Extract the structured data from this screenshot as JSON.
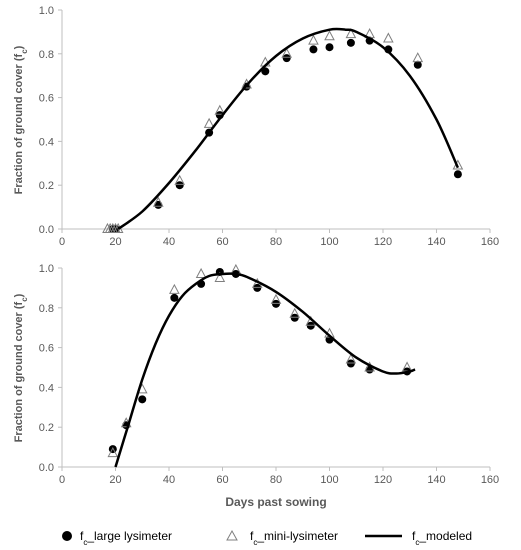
{
  "chart_data": [
    {
      "type": "scatter",
      "ylabel_main": "Fraction of ground cover (f",
      "ylabel_sub": "c",
      "ylabel_end": ")",
      "xlabel": "",
      "xlim": [
        0,
        160
      ],
      "ylim": [
        0,
        1.0
      ],
      "xticks": [
        "0",
        "20",
        "40",
        "60",
        "80",
        "100",
        "120",
        "140",
        "160"
      ],
      "yticks": [
        "0.0",
        "0.2",
        "0.4",
        "0.6",
        "0.8",
        "1.0"
      ],
      "series": [
        {
          "marker": "circle",
          "x": [
            19,
            20,
            36,
            44,
            55,
            59,
            69,
            76,
            84,
            94,
            100,
            108,
            115,
            122,
            133,
            148
          ],
          "y": [
            0.0,
            0.0,
            0.11,
            0.2,
            0.44,
            0.52,
            0.65,
            0.72,
            0.78,
            0.82,
            0.83,
            0.85,
            0.86,
            0.82,
            0.75,
            0.25
          ]
        },
        {
          "marker": "triangle",
          "x": [
            17,
            18,
            19,
            20,
            21,
            36,
            44,
            55,
            59,
            69,
            76,
            84,
            94,
            100,
            108,
            115,
            122,
            133,
            148
          ],
          "y": [
            0.0,
            0.0,
            0.0,
            0.0,
            0.0,
            0.12,
            0.22,
            0.48,
            0.54,
            0.66,
            0.76,
            0.8,
            0.86,
            0.88,
            0.89,
            0.89,
            0.87,
            0.78,
            0.29
          ]
        },
        {
          "marker": "line",
          "x": [
            21,
            30,
            40,
            50,
            60,
            70,
            80,
            90,
            100,
            106,
            110,
            120,
            130,
            140,
            148
          ],
          "y": [
            0.0,
            0.08,
            0.21,
            0.36,
            0.52,
            0.67,
            0.79,
            0.87,
            0.91,
            0.91,
            0.9,
            0.83,
            0.7,
            0.5,
            0.28
          ]
        }
      ]
    },
    {
      "type": "scatter",
      "ylabel_main": "Fraction of ground cover (f",
      "ylabel_sub": "c",
      "ylabel_end": ")",
      "xlabel": "Days past sowing",
      "xlim": [
        0,
        160
      ],
      "ylim": [
        0,
        1.0
      ],
      "xticks": [
        "0",
        "20",
        "40",
        "60",
        "80",
        "100",
        "120",
        "140",
        "160"
      ],
      "yticks": [
        "0.0",
        "0.2",
        "0.4",
        "0.6",
        "0.8",
        "1.0"
      ],
      "series": [
        {
          "marker": "circle",
          "x": [
            19,
            24,
            30,
            42,
            52,
            59,
            65,
            73,
            80,
            87,
            93,
            100,
            108,
            115,
            129
          ],
          "y": [
            0.09,
            0.21,
            0.34,
            0.85,
            0.92,
            0.98,
            0.97,
            0.9,
            0.82,
            0.75,
            0.71,
            0.64,
            0.52,
            0.49,
            0.48
          ]
        },
        {
          "marker": "triangle",
          "x": [
            19,
            24,
            30,
            42,
            52,
            59,
            65,
            73,
            80,
            87,
            93,
            100,
            108,
            115,
            129
          ],
          "y": [
            0.07,
            0.22,
            0.39,
            0.89,
            0.97,
            0.95,
            0.99,
            0.92,
            0.84,
            0.77,
            0.73,
            0.67,
            0.54,
            0.5,
            0.5
          ]
        },
        {
          "marker": "line",
          "x": [
            20,
            25,
            30,
            35,
            40,
            45,
            50,
            55,
            60,
            65,
            70,
            80,
            90,
            100,
            110,
            120,
            125,
            130,
            132
          ],
          "y": [
            0.0,
            0.22,
            0.44,
            0.62,
            0.76,
            0.86,
            0.92,
            0.96,
            0.97,
            0.97,
            0.95,
            0.88,
            0.78,
            0.66,
            0.55,
            0.48,
            0.47,
            0.48,
            0.49
          ]
        }
      ]
    }
  ],
  "legend": [
    {
      "main": "f",
      "sub": "c",
      "rest": "_large lysimeter",
      "marker": "circle"
    },
    {
      "main": "f",
      "sub": "c",
      "rest": "_mini-lysimeter",
      "marker": "triangle"
    },
    {
      "main": "f",
      "sub": "c",
      "rest": "_modeled",
      "marker": "line"
    }
  ],
  "colors": {
    "circle_fill": "#000000",
    "triangle_stroke": "#7f7f7f",
    "line": "#000000",
    "axis": "#bfbfbf",
    "text": "#595959"
  }
}
